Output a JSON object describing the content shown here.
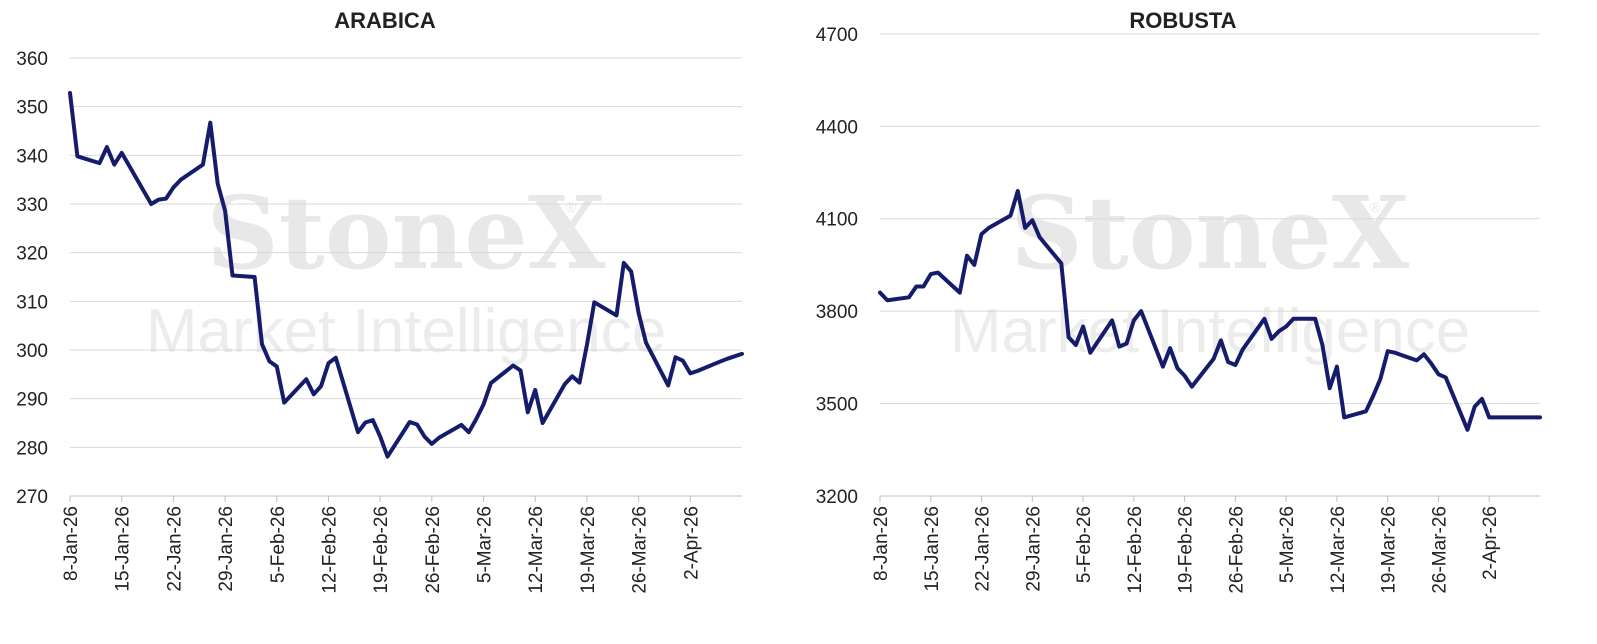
{
  "watermark": {
    "line1": "StoneX",
    "line2": "Market Intelligence",
    "mark": "®"
  },
  "chart_data": [
    {
      "type": "line",
      "title": "ARABICA",
      "xlabel": "",
      "ylabel": "",
      "ylim": [
        270,
        360
      ],
      "yticks": [
        270,
        280,
        290,
        300,
        310,
        320,
        330,
        340,
        350,
        360
      ],
      "xlim": [
        "2026-01-08",
        "2026-04-09"
      ],
      "xtick_labels": [
        "8-Jan-26",
        "15-Jan-26",
        "22-Jan-26",
        "29-Jan-26",
        "5-Feb-26",
        "12-Feb-26",
        "19-Feb-26",
        "26-Feb-26",
        "5-Mar-26",
        "12-Mar-26",
        "19-Mar-26",
        "26-Mar-26",
        "2-Apr-26"
      ],
      "xtick_dates": [
        "2026-01-08",
        "2026-01-15",
        "2026-01-22",
        "2026-01-29",
        "2026-02-05",
        "2026-02-12",
        "2026-02-19",
        "2026-02-26",
        "2026-03-05",
        "2026-03-12",
        "2026-03-19",
        "2026-03-26",
        "2026-04-02"
      ],
      "grid": true,
      "color": "#151c6b",
      "series": [
        {
          "x": [
            "2026-01-08",
            "2026-01-09",
            "2026-01-12",
            "2026-01-13",
            "2026-01-14",
            "2026-01-15",
            "2026-01-16",
            "2026-01-19",
            "2026-01-20",
            "2026-01-21",
            "2026-01-22",
            "2026-01-23",
            "2026-01-26",
            "2026-01-27",
            "2026-01-28",
            "2026-01-29",
            "2026-01-30",
            "2026-02-02",
            "2026-02-03",
            "2026-02-04",
            "2026-02-05",
            "2026-02-06",
            "2026-02-09",
            "2026-02-10",
            "2026-02-11",
            "2026-02-12",
            "2026-02-13",
            "2026-02-16",
            "2026-02-17",
            "2026-02-18",
            "2026-02-19",
            "2026-02-20",
            "2026-02-23",
            "2026-02-24",
            "2026-02-25",
            "2026-02-26",
            "2026-02-27",
            "2026-03-02",
            "2026-03-03",
            "2026-03-04",
            "2026-03-05",
            "2026-03-06",
            "2026-03-09",
            "2026-03-10",
            "2026-03-11",
            "2026-03-12",
            "2026-03-13",
            "2026-03-16",
            "2026-03-17",
            "2026-03-18",
            "2026-03-19",
            "2026-03-20",
            "2026-03-23",
            "2026-03-24",
            "2026-03-25",
            "2026-03-26",
            "2026-03-27",
            "2026-03-30",
            "2026-03-31",
            "2026-04-01",
            "2026-04-02",
            "2026-04-03",
            "2026-04-06",
            "2026-04-07",
            "2026-04-08",
            "2026-04-09"
          ],
          "y": [
            352.8,
            339.8,
            338.4,
            341.7,
            338.1,
            340.5,
            337.9,
            330.0,
            330.9,
            331.1,
            333.4,
            335.0,
            338.1,
            346.7,
            334.2,
            328.6,
            315.3,
            315.0,
            301.2,
            297.7,
            296.6,
            289.2,
            294.0,
            290.9,
            292.6,
            297.3,
            298.4,
            283.1,
            285.1,
            285.6,
            282.2,
            278.1,
            285.2,
            284.7,
            282.2,
            280.7,
            282.0,
            284.6,
            283.1,
            285.8,
            288.8,
            293.2,
            296.8,
            295.8,
            287.2,
            291.8,
            285.0,
            293.0,
            294.6,
            293.3,
            301.0,
            309.8,
            307.1,
            317.9,
            316.1,
            307.6,
            301.5,
            292.7,
            298.5,
            297.8,
            295.2,
            295.7,
            297.6,
            298.2,
            298.7,
            299.2
          ]
        }
      ]
    },
    {
      "type": "line",
      "title": "ROBUSTA",
      "xlabel": "",
      "ylabel": "",
      "ylim": [
        3200,
        4800
      ],
      "yticks": [
        3200,
        3500,
        3800,
        4100,
        4400,
        4700
      ],
      "xlim": [
        "2026-01-08",
        "2026-04-09"
      ],
      "xtick_labels": [
        "8-Jan-26",
        "15-Jan-26",
        "22-Jan-26",
        "29-Jan-26",
        "5-Feb-26",
        "12-Feb-26",
        "19-Feb-26",
        "26-Feb-26",
        "5-Mar-26",
        "12-Mar-26",
        "19-Mar-26",
        "26-Mar-26",
        "2-Apr-26"
      ],
      "xtick_dates": [
        "2026-01-08",
        "2026-01-15",
        "2026-01-22",
        "2026-01-29",
        "2026-02-05",
        "2026-02-12",
        "2026-02-19",
        "2026-02-26",
        "2026-03-05",
        "2026-03-12",
        "2026-03-19",
        "2026-03-26",
        "2026-04-02"
      ],
      "grid": true,
      "color": "#151c6b",
      "series": [
        {
          "x": [
            "2026-01-08",
            "2026-01-09",
            "2026-01-12",
            "2026-01-13",
            "2026-01-14",
            "2026-01-15",
            "2026-01-16",
            "2026-01-19",
            "2026-01-20",
            "2026-01-21",
            "2026-01-22",
            "2026-01-23",
            "2026-01-26",
            "2026-01-27",
            "2026-01-28",
            "2026-01-29",
            "2026-01-30",
            "2026-02-02",
            "2026-02-03",
            "2026-02-04",
            "2026-02-05",
            "2026-02-06",
            "2026-02-09",
            "2026-02-10",
            "2026-02-11",
            "2026-02-12",
            "2026-02-13",
            "2026-02-16",
            "2026-02-17",
            "2026-02-18",
            "2026-02-19",
            "2026-02-20",
            "2026-02-23",
            "2026-02-24",
            "2026-02-25",
            "2026-02-26",
            "2026-02-27",
            "2026-03-02",
            "2026-03-03",
            "2026-03-04",
            "2026-03-05",
            "2026-03-06",
            "2026-03-09",
            "2026-03-10",
            "2026-03-11",
            "2026-03-12",
            "2026-03-13",
            "2026-03-16",
            "2026-03-17",
            "2026-03-18",
            "2026-03-19",
            "2026-03-20",
            "2026-03-23",
            "2026-03-24",
            "2026-03-25",
            "2026-03-26",
            "2026-03-27",
            "2026-03-30",
            "2026-03-31",
            "2026-04-01",
            "2026-04-02",
            "2026-04-03",
            "2026-04-06",
            "2026-04-07",
            "2026-04-08",
            "2026-04-09"
          ],
          "y": [
            3860,
            3835,
            3845,
            3880,
            3880,
            3920,
            3925,
            3860,
            3980,
            3950,
            4050,
            4070,
            4110,
            4190,
            4070,
            4095,
            4040,
            3955,
            3715,
            3690,
            3750,
            3665,
            3770,
            3685,
            3695,
            3770,
            3800,
            3620,
            3680,
            3615,
            3590,
            3555,
            3645,
            3705,
            3635,
            3625,
            3675,
            3775,
            3710,
            3735,
            3750,
            3775,
            3775,
            3690,
            3550,
            3620,
            3455,
            3475,
            3525,
            3580,
            3670,
            3665,
            3640,
            3660,
            3630,
            3595,
            3585,
            3415,
            3490,
            3515,
            3455,
            3455,
            3455,
            3455,
            3455,
            3455
          ]
        }
      ]
    }
  ]
}
